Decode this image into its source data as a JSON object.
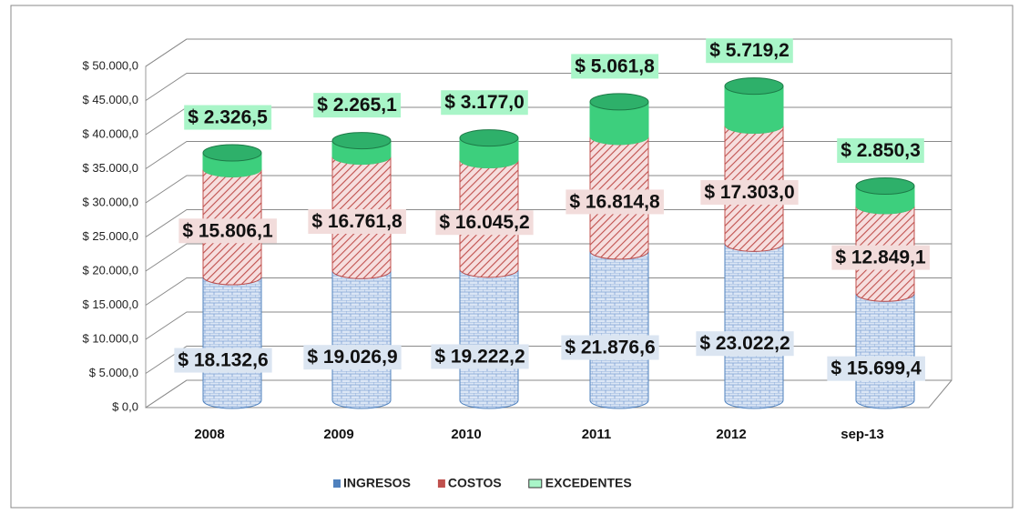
{
  "chart_data": {
    "type": "bar",
    "stacked": true,
    "categories": [
      "2008",
      "2009",
      "2010",
      "2011",
      "2012",
      "sep-13"
    ],
    "series": [
      {
        "name": "INGRESOS",
        "color": "#4f81bd",
        "values": [
          18132.6,
          19026.9,
          19222.2,
          21876.6,
          23022.2,
          15699.4
        ],
        "value_labels": [
          "$ 18.132,6",
          "$ 19.026,9",
          "$ 19.222,2",
          "$ 21.876,6",
          "$ 23.022,2",
          "$ 15.699,4"
        ]
      },
      {
        "name": "COSTOS",
        "color": "#c0504d",
        "values": [
          15806.1,
          16761.8,
          16045.2,
          16814.8,
          17303.0,
          12849.1
        ],
        "value_labels": [
          "$ 15.806,1",
          "$ 16.761,8",
          "$ 16.045,2",
          "$ 16.814,8",
          "$ 17.303,0",
          "$ 12.849,1"
        ]
      },
      {
        "name": "EXCEDENTES",
        "color": "#3dcf7d",
        "values": [
          2326.5,
          2265.1,
          3177.0,
          5061.8,
          5719.2,
          2850.3
        ],
        "value_labels": [
          "$ 2.326,5",
          "$ 2.265,1",
          "$ 3.177,0",
          "$ 5.061,8",
          "$ 5.719,2",
          "$ 2.850,3"
        ]
      }
    ],
    "ylim": [
      0,
      50000
    ],
    "yticks": [
      {
        "value": 0,
        "label": "$ 0,0"
      },
      {
        "value": 5000,
        "label": "$ 5.000,0"
      },
      {
        "value": 10000,
        "label": "$ 10.000,0"
      },
      {
        "value": 15000,
        "label": "$ 15.000,0"
      },
      {
        "value": 20000,
        "label": "$ 20.000,0"
      },
      {
        "value": 25000,
        "label": "$ 25.000,0"
      },
      {
        "value": 30000,
        "label": "$ 30.000,0"
      },
      {
        "value": 35000,
        "label": "$ 35.000,0"
      },
      {
        "value": 40000,
        "label": "$ 40.000,0"
      },
      {
        "value": 45000,
        "label": "$ 45.000,0"
      },
      {
        "value": 50000,
        "label": "$ 50.000,0"
      }
    ],
    "grid": true,
    "legend": "bottom"
  }
}
